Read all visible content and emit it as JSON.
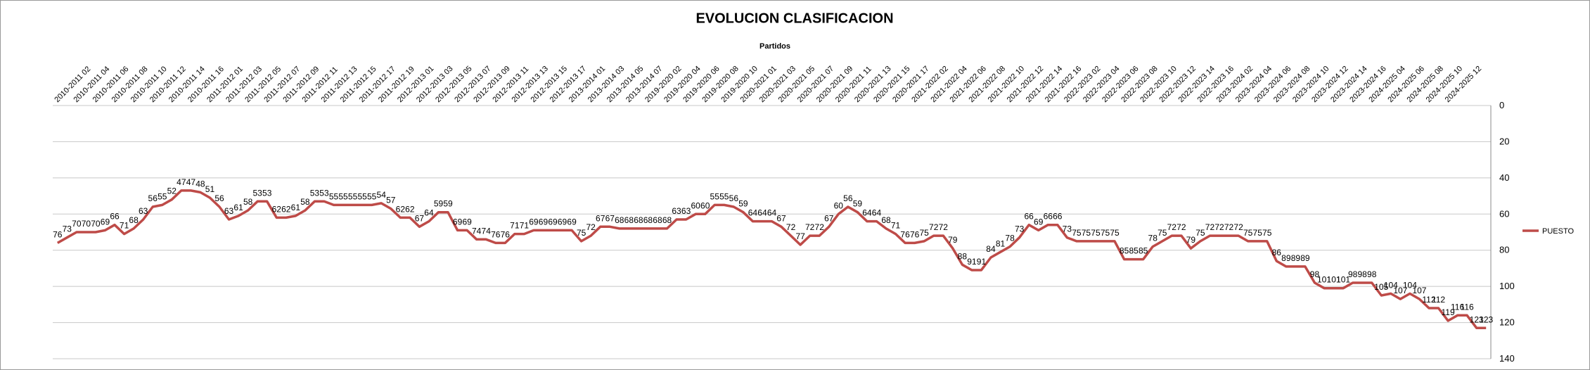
{
  "chart_data": {
    "type": "line",
    "title": "EVOLUCION CLASIFICACION",
    "x_label": "Partidos",
    "categories": [
      "2010-2011 02",
      null,
      "2010-2011 04",
      null,
      "2010-2011 06",
      null,
      "2010-2011 08",
      null,
      "2010-2011 10",
      null,
      "2010-2011 12",
      null,
      "2010-2011 14",
      null,
      "2010-2011 16",
      null,
      "2011-2012 01",
      null,
      "2011-2012 03",
      null,
      "2011-2012 05",
      null,
      "2011-2012 07",
      null,
      "2011-2012 09",
      null,
      "2011-2012 11",
      null,
      "2011-2012 13",
      null,
      "2011-2012 15",
      null,
      "2011-2012 17",
      null,
      "2011-2012 19",
      null,
      "2012-2013 01",
      null,
      "2012-2013 03",
      null,
      "2012-2013 05",
      null,
      "2012-2013 07",
      null,
      "2012-2013 09",
      null,
      "2012-2013 11",
      null,
      "2012-2013 13",
      null,
      "2012-2013 15",
      null,
      "2012-2013 17",
      null,
      "2013-2014 01",
      null,
      "2013-2014 03",
      null,
      "2013-2014 05",
      null,
      "2013-2014 07",
      null,
      "2019-2020 02",
      null,
      "2019-2020 04",
      null,
      "2019-2020 06",
      null,
      "2019-2020 08",
      null,
      "2019-2020 10",
      null,
      "2020-2021 01",
      null,
      "2020-2021 03",
      null,
      "2020-2021 05",
      null,
      "2020-2021 07",
      null,
      "2020-2021 09",
      null,
      "2020-2021 11",
      null,
      "2020-2021 13",
      null,
      "2020-2021 15",
      null,
      "2020-2021 17",
      null,
      "2021-2022 02",
      null,
      "2021-2022 04",
      null,
      "2021-2022 06",
      null,
      "2021-2022 08",
      null,
      "2021-2022 10",
      null,
      "2021-2022 12",
      null,
      "2021-2022 14",
      null,
      "2021-2022 16",
      null,
      "2022-2023 02",
      null,
      "2022-2023 04",
      null,
      "2022-2023 06",
      null,
      "2022-2023 08",
      null,
      "2022-2023 10",
      null,
      "2022-2023 12",
      null,
      "2022-2023 14",
      null,
      "2022-2023 16",
      null,
      "2023-2024 02",
      null,
      "2023-2024 04",
      null,
      "2023-2024 06",
      null,
      "2023-2024 08",
      null,
      "2023-2024 10",
      null,
      "2023-2024 12",
      null,
      "2023-2024 14",
      null,
      "2023-2024 16",
      null,
      "2024-2025 04",
      null,
      "2024-2025 06",
      null,
      "2024-2025 08",
      null,
      "2024-2025 10",
      null,
      "2024-2025 12",
      null,
      null,
      null,
      null
    ],
    "series": [
      {
        "name": "PUESTO",
        "color": "#be4b48",
        "values": [
          76,
          73,
          70,
          70,
          70,
          69,
          66,
          71,
          68,
          63,
          56,
          55,
          52,
          47,
          47,
          48,
          51,
          56,
          63,
          61,
          58,
          53,
          53,
          62,
          62,
          61,
          58,
          53,
          53,
          55,
          55,
          55,
          55,
          55,
          54,
          57,
          62,
          62,
          67,
          64,
          59,
          59,
          69,
          69,
          74,
          74,
          76,
          76,
          71,
          71,
          69,
          69,
          69,
          69,
          69,
          75,
          72,
          67,
          67,
          68,
          68,
          68,
          68,
          68,
          68,
          63,
          63,
          60,
          60,
          55,
          55,
          56,
          59,
          64,
          64,
          64,
          67,
          72,
          77,
          72,
          72,
          67,
          60,
          56,
          59,
          64,
          64,
          68,
          71,
          76,
          76,
          75,
          72,
          72,
          79,
          88,
          91,
          91,
          84,
          81,
          78,
          73,
          66,
          69,
          66,
          66,
          73,
          75,
          75,
          75,
          75,
          75,
          85,
          85,
          85,
          78,
          75,
          72,
          72,
          79,
          75,
          72,
          72,
          72,
          72,
          75,
          75,
          75,
          86,
          89,
          89,
          89,
          98,
          101,
          101,
          101,
          98,
          98,
          98,
          105,
          104,
          107,
          104,
          107,
          112,
          112,
          119,
          116,
          116,
          123,
          123
        ]
      }
    ],
    "ylim": [
      0,
      140
    ],
    "yticks": [
      0,
      20,
      40,
      60,
      80,
      100,
      120,
      140
    ],
    "y_reversed": true,
    "grid": true,
    "legend": "right"
  }
}
